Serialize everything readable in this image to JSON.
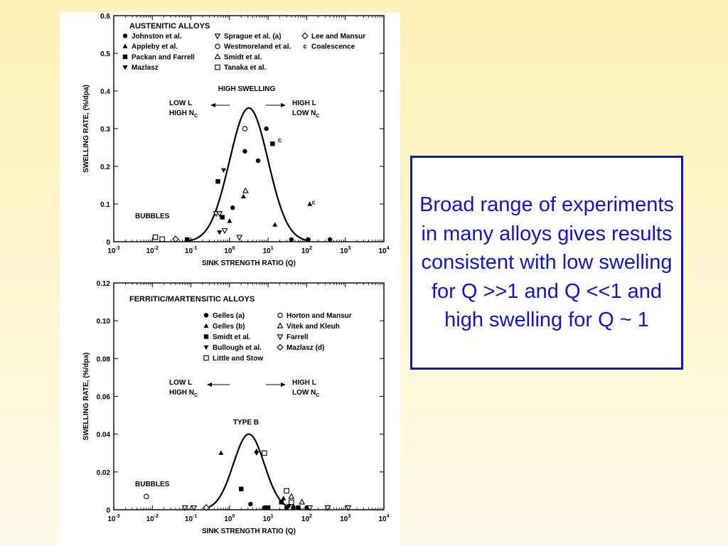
{
  "callout": {
    "text": "Broad range of experiments in many alloys gives results consistent with low swelling for Q >>1 and Q <<1 and high swelling for Q ~ 1"
  },
  "colors": {
    "background": "#fff3c4",
    "callout_border": "#1515c8",
    "callout_text": "#1515c8",
    "figure_ink": "#000000"
  },
  "chart_data": [
    {
      "type": "scatter",
      "panel": "top",
      "title": "AUSTENITIC ALLOYS",
      "xlabel": "SINK STRENGTH RATIO (Q)",
      "ylabel": "SWELLING RATE, (%/dpa)",
      "xscale": "log",
      "xlim": [
        0.001,
        10000
      ],
      "ylim": [
        0,
        0.6
      ],
      "x_ticks": [
        0.001,
        0.01,
        0.1,
        1,
        10,
        100,
        1000,
        10000
      ],
      "x_tick_labels": [
        "10-3",
        "10-2",
        "10-1",
        "100",
        "101",
        "102",
        "103",
        "104"
      ],
      "y_ticks": [
        0,
        0.1,
        0.2,
        0.3,
        0.4,
        0.5,
        0.6
      ],
      "y_tick_labels": [
        "0",
        "0.1",
        "0.2",
        "0.3",
        "0.4",
        "0.5",
        "0.6"
      ],
      "grid": false,
      "legend": [
        {
          "label": "Johnston et al.",
          "marker": "circle-filled"
        },
        {
          "label": "Appleby et al.",
          "marker": "triangle-up-filled"
        },
        {
          "label": "Packan and Farrell",
          "marker": "square-filled"
        },
        {
          "label": "Mazlasz",
          "marker": "triangle-down-filled"
        },
        {
          "label": "Sprague et al. (a)",
          "marker": "triangle-down-open"
        },
        {
          "label": "Westmoreland et al.",
          "marker": "circle-open"
        },
        {
          "label": "Smidt et al.",
          "marker": "triangle-up-open"
        },
        {
          "label": "Tanaka et al.",
          "marker": "square-open"
        },
        {
          "label": "Lee and Mansur",
          "marker": "diamond-open"
        },
        {
          "label": "Coalescence",
          "marker": "letter-c"
        }
      ],
      "annotations": {
        "high_swelling": "HIGH SWELLING",
        "low_l": "LOW L",
        "high_nc": "HIGH N",
        "high_l": "HIGH L",
        "low_nc": "LOW N",
        "nc_sub": "C",
        "bubbles": "BUBBLES"
      },
      "curve": {
        "center_log10q": 0.5,
        "sigma": 0.5,
        "peak": 0.355,
        "x_range": [
          0.08,
          100
        ]
      },
      "series": [
        {
          "name": "Johnston et al.",
          "marker": "circle-filled",
          "points": [
            [
              2.5,
              0.24
            ],
            [
              5.5,
              0.215
            ],
            [
              9,
              0.3
            ],
            [
              1.2,
              0.09
            ],
            [
              40,
              0.005
            ],
            [
              110,
              0.005
            ],
            [
              400,
              0.004
            ]
          ]
        },
        {
          "name": "Appleby et al.",
          "marker": "triangle-up-filled",
          "points": [
            [
              2.3,
              0.12
            ],
            [
              1.0,
              0.055
            ],
            [
              15,
              0.045
            ],
            [
              120,
              0.1
            ]
          ]
        },
        {
          "name": "Packan and Farrell",
          "marker": "square-filled",
          "points": [
            [
              0.5,
              0.16
            ],
            [
              0.65,
              0.065
            ],
            [
              13,
              0.26
            ],
            [
              0.08,
              0.005
            ]
          ]
        },
        {
          "name": "Mazlasz",
          "marker": "triangle-down-filled",
          "points": [
            [
              0.7,
              0.19
            ],
            [
              0.55,
              0.025
            ]
          ]
        },
        {
          "name": "Sprague et al. (a)",
          "marker": "triangle-down-open",
          "points": [
            [
              0.45,
              0.075
            ],
            [
              0.55,
              0.075
            ],
            [
              0.75,
              0.03
            ],
            [
              1.8,
              0.012
            ]
          ]
        },
        {
          "name": "Westmoreland et al.",
          "marker": "circle-open",
          "points": [
            [
              2.5,
              0.3
            ]
          ]
        },
        {
          "name": "Smidt et al.",
          "marker": "triangle-up-open",
          "points": [
            [
              2.6,
              0.135
            ]
          ]
        },
        {
          "name": "Tanaka et al.",
          "marker": "square-open",
          "points": [
            [
              0.012,
              0.012
            ],
            [
              0.018,
              0.007
            ]
          ]
        },
        {
          "name": "Lee and Mansur",
          "marker": "diamond-open",
          "points": [
            [
              0.04,
              0.007
            ]
          ]
        },
        {
          "name": "Coalescence",
          "marker": "letter-c",
          "points": [
            [
              20,
              0.27
            ],
            [
              150,
              0.105
            ]
          ]
        }
      ]
    },
    {
      "type": "scatter",
      "panel": "bottom",
      "title": "FERRITIC/MARTENSITIC ALLOYS",
      "xlabel": "SINK STRENGTH RATIO (Q)",
      "ylabel": "SWELLING RATE, (%/dpa)",
      "xscale": "log",
      "xlim": [
        0.001,
        10000
      ],
      "ylim": [
        0,
        0.12
      ],
      "x_ticks": [
        0.001,
        0.01,
        0.1,
        1,
        10,
        100,
        1000,
        10000
      ],
      "x_tick_labels": [
        "10-3",
        "10-2",
        "10-1",
        "100",
        "101",
        "102",
        "103",
        "104"
      ],
      "y_ticks": [
        0,
        0.02,
        0.04,
        0.06,
        0.08,
        0.1,
        0.12
      ],
      "y_tick_labels": [
        "0",
        "0.02",
        "0.04",
        "0.06",
        "0.08",
        "0.10",
        "0.12"
      ],
      "grid": false,
      "legend": [
        {
          "label": "Gelles (a)",
          "marker": "circle-filled"
        },
        {
          "label": "Gelles (b)",
          "marker": "triangle-up-filled"
        },
        {
          "label": "Smidt et al.",
          "marker": "square-filled"
        },
        {
          "label": "Bullough et al.",
          "marker": "triangle-down-filled"
        },
        {
          "label": "Little and Stow",
          "marker": "square-open"
        },
        {
          "label": "Horton and Mansur",
          "marker": "circle-open"
        },
        {
          "label": "Vitek and Kleuh",
          "marker": "triangle-up-open"
        },
        {
          "label": "Farrell",
          "marker": "triangle-down-open"
        },
        {
          "label": "Mazlasz (d)",
          "marker": "diamond-open"
        }
      ],
      "annotations": {
        "type_b": "TYPE B",
        "low_l": "LOW L",
        "high_nc": "HIGH N",
        "high_l": "HIGH L",
        "low_nc": "LOW N",
        "nc_sub": "C",
        "bubbles": "BUBBLES"
      },
      "curve": {
        "center_log10q": 0.5,
        "sigma": 0.4,
        "peak": 0.04,
        "x_range": [
          0.3,
          30
        ]
      },
      "series": [
        {
          "name": "Gelles (a)",
          "marker": "circle-filled",
          "points": [
            [
              3.5,
              0.003
            ],
            [
              8,
              0.001
            ],
            [
              30,
              0.001
            ],
            [
              45,
              0.001
            ],
            [
              100,
              0.001
            ]
          ]
        },
        {
          "name": "Gelles (b)",
          "marker": "triangle-up-filled",
          "points": [
            [
              0.6,
              0.03
            ],
            [
              5,
              0.031
            ],
            [
              25,
              0.006
            ],
            [
              45,
              0.002
            ]
          ]
        },
        {
          "name": "Smidt et al.",
          "marker": "square-filled",
          "points": [
            [
              2.0,
              0.011
            ],
            [
              10,
              0.001
            ],
            [
              22,
              0.004
            ],
            [
              60,
              0.001
            ]
          ]
        },
        {
          "name": "Bullough et al.",
          "marker": "triangle-down-filled",
          "points": [
            [
              5,
              0.03
            ],
            [
              35,
              0.002
            ]
          ]
        },
        {
          "name": "Little and Stow",
          "marker": "square-open",
          "points": [
            [
              8,
              0.03
            ],
            [
              30,
              0.01
            ],
            [
              40,
              0.004
            ]
          ]
        },
        {
          "name": "Horton and Mansur",
          "marker": "circle-open",
          "points": [
            [
              0.007,
              0.007
            ]
          ]
        },
        {
          "name": "Vitek and Kleuh",
          "marker": "triangle-up-open",
          "points": [
            [
              40,
              0.007
            ],
            [
              75,
              0.004
            ]
          ]
        },
        {
          "name": "Farrell",
          "marker": "triangle-down-open",
          "points": [
            [
              0.07,
              0.0
            ],
            [
              0.12,
              0.0
            ],
            [
              120,
              0.0
            ],
            [
              350,
              0.0
            ],
            [
              1200,
              0.0
            ]
          ]
        },
        {
          "name": "Mazlasz (d)",
          "marker": "diamond-open",
          "points": [
            [
              0.25,
              0.0
            ]
          ]
        }
      ]
    }
  ]
}
